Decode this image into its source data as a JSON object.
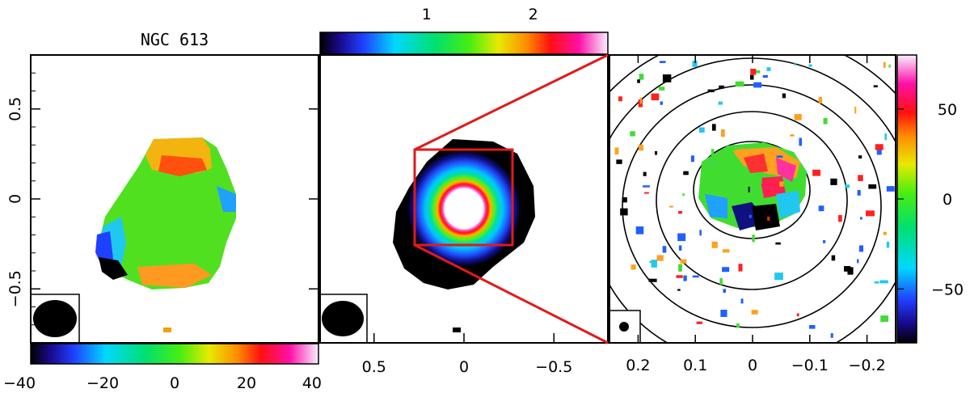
{
  "chart_data": [
    {
      "type": "heatmap",
      "panel": "left",
      "title": "NGC 613",
      "description_units": "velocity",
      "yticks": [
        "0.5",
        "0",
        "−0.5"
      ],
      "yvalues": [
        0.5,
        0,
        -0.5
      ],
      "ylim": [
        -0.8,
        0.8
      ],
      "colorbar": {
        "position": "bottom",
        "range": [
          -40,
          40
        ],
        "ticks": [
          "−40",
          "−20",
          "0",
          "20",
          "40"
        ],
        "tick_values": [
          -40,
          -20,
          0,
          20,
          40
        ]
      },
      "beam": "ellipse lower-left"
    },
    {
      "type": "heatmap",
      "panel": "middle",
      "description_units": "intensity",
      "xticks": [
        "0.5",
        "0",
        "−0.5"
      ],
      "xvalues": [
        0.5,
        0,
        -0.5
      ],
      "xlim": [
        0.8,
        -0.8
      ],
      "colorbar": {
        "position": "top",
        "range": [
          0,
          2.7
        ],
        "ticks": [
          "1",
          "2"
        ],
        "tick_values": [
          1,
          2
        ]
      },
      "zoom_box": {
        "x": [
          0.25,
          -0.25
        ],
        "y": [
          0.25,
          -0.25
        ]
      },
      "beam": "ellipse lower-left"
    },
    {
      "type": "heatmap",
      "panel": "right",
      "description_units": "velocity",
      "xticks": [
        "0.2",
        "0.1",
        "0",
        "−0.1",
        "−0.2"
      ],
      "xvalues": [
        0.2,
        0.1,
        0,
        -0.1,
        -0.2
      ],
      "xlim": [
        0.25,
        -0.25
      ],
      "colorbar": {
        "position": "right",
        "range": [
          -80,
          80
        ],
        "ticks": [
          "50",
          "0",
          "−50"
        ],
        "tick_values": [
          50,
          0,
          -50
        ]
      },
      "contours": true,
      "beam": "small circle lower-left"
    }
  ],
  "colors": {
    "zoom_lines": "#e21a1a",
    "frame": "#000000",
    "background": "#ffffff"
  }
}
